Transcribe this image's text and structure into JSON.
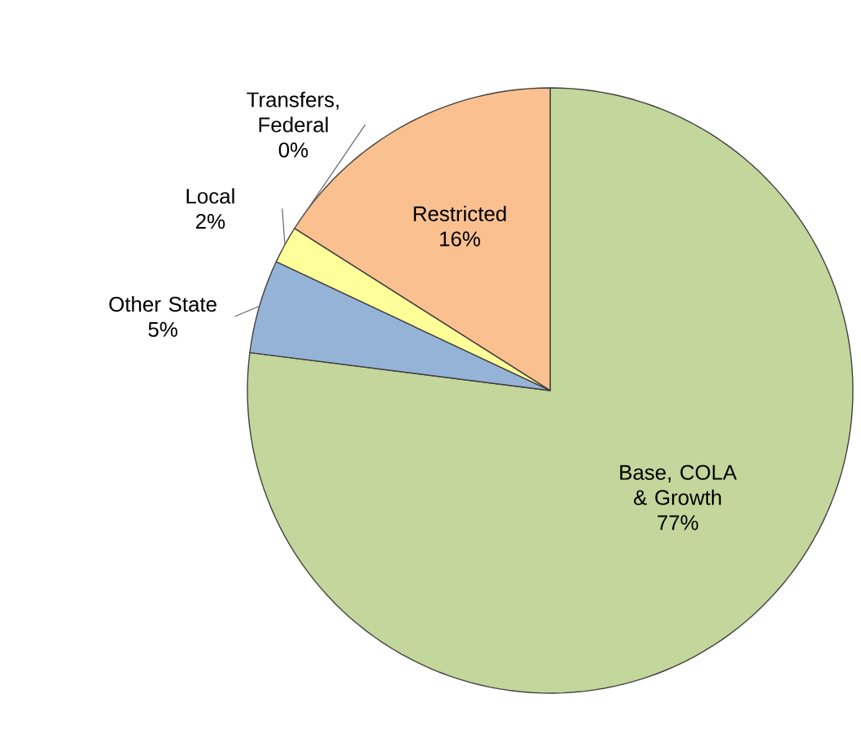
{
  "chart_data": {
    "type": "pie",
    "categories": [
      "Base, COLA & Growth",
      "Other State",
      "Local",
      "Transfers, Federal",
      "Restricted"
    ],
    "values": [
      77,
      5,
      2,
      0,
      16
    ],
    "value_labels": [
      "77%",
      "5%",
      "2%",
      "0%",
      "16%"
    ],
    "colors": [
      "#c3d69b",
      "#95b3d7",
      "#ffff99",
      "#b3a2c7",
      "#fac090"
    ]
  }
}
